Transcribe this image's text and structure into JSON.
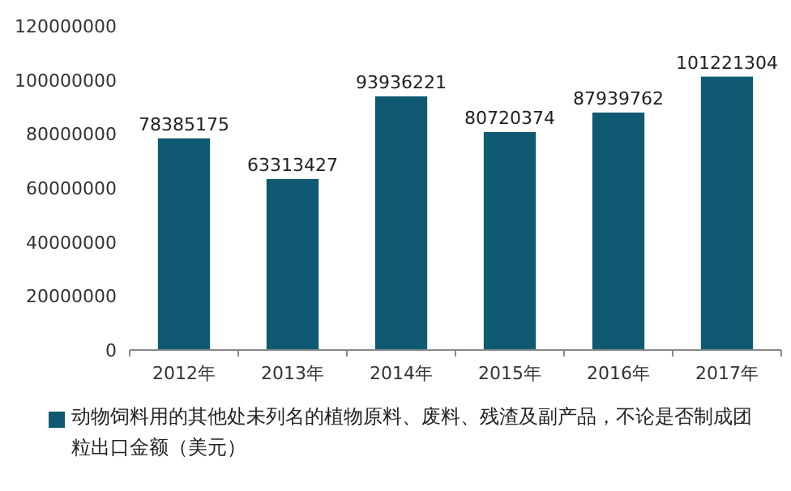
{
  "chart_data": {
    "type": "bar",
    "categories": [
      "2012年",
      "2013年",
      "2014年",
      "2015年",
      "2016年",
      "2017年"
    ],
    "series": [
      {
        "name": "动物饲料用的其他处未列名的植物原料、废料、残渣及副产品，不论是否制成团粒出口金额（美元）",
        "color": "#0f5a72",
        "values": [
          78385175,
          63313427,
          93936221,
          80720374,
          87939762,
          101221304
        ]
      }
    ],
    "ylim": [
      0,
      120000000
    ],
    "yticks": [
      0,
      20000000,
      40000000,
      60000000,
      80000000,
      100000000,
      120000000
    ],
    "data_labels": true,
    "grid": false,
    "legend": "bottom"
  }
}
